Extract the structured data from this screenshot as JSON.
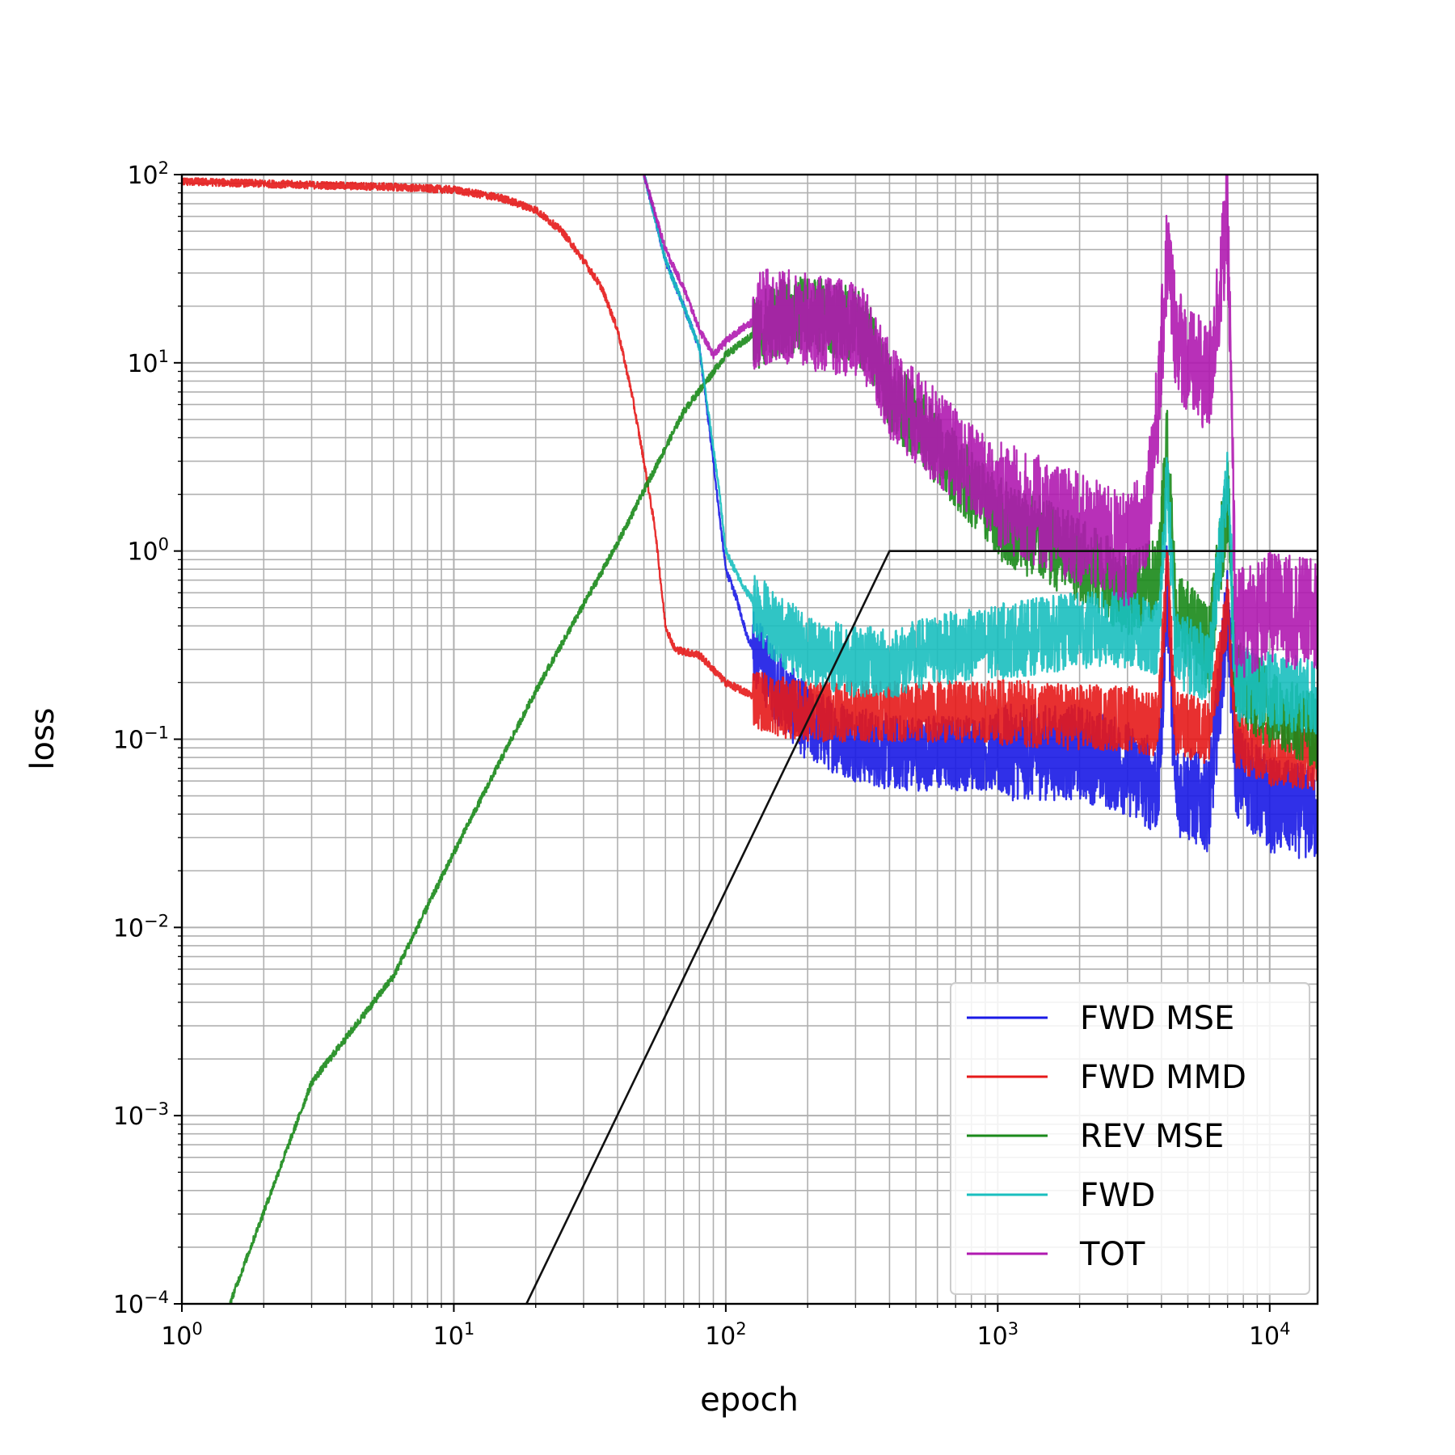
{
  "chart_data": {
    "type": "line",
    "xlabel": "epoch",
    "ylabel": "loss",
    "xscale": "log",
    "yscale": "log",
    "xlim": [
      1,
      15000
    ],
    "ylim": [
      0.0001,
      100
    ],
    "grid": true,
    "legend_position": "lower-right",
    "x_ticks": [
      {
        "base": "10",
        "exp": "0"
      },
      {
        "base": "10",
        "exp": "1"
      },
      {
        "base": "10",
        "exp": "2"
      },
      {
        "base": "10",
        "exp": "3"
      },
      {
        "base": "10",
        "exp": "4"
      }
    ],
    "y_ticks": [
      {
        "base": "10",
        "exp": "2"
      },
      {
        "base": "10",
        "exp": "1"
      },
      {
        "base": "10",
        "exp": "0"
      },
      {
        "base": "10",
        "exp": "−1"
      },
      {
        "base": "10",
        "exp": "−2"
      },
      {
        "base": "10",
        "exp": "−3"
      },
      {
        "base": "10",
        "exp": "−4"
      }
    ],
    "series": [
      {
        "name": "FWD MSE",
        "color": "#1a1ae6",
        "x": [
          50,
          60,
          70,
          80,
          90,
          95,
          100,
          110,
          120,
          150,
          200,
          300,
          400,
          600,
          1000,
          2000,
          3000,
          3900,
          4200,
          4500,
          6000,
          7000,
          7500,
          10000,
          15000
        ],
        "y": [
          100,
          35,
          20,
          12,
          3,
          1.5,
          0.8,
          0.55,
          0.35,
          0.2,
          0.12,
          0.095,
          0.085,
          0.085,
          0.085,
          0.085,
          0.07,
          0.055,
          0.7,
          0.055,
          0.045,
          0.5,
          0.07,
          0.045,
          0.04
        ],
        "band": [
          2.5,
          1.4,
          1.6,
          1.8,
          1.8
        ]
      },
      {
        "name": "FWD MMD",
        "color": "#e61a1a",
        "x": [
          1,
          3,
          6,
          10,
          15,
          20,
          25,
          30,
          35,
          40,
          45,
          50,
          55,
          60,
          65,
          80,
          100,
          150,
          200,
          300,
          500,
          1000,
          2000,
          3000,
          3900,
          4200,
          4500,
          6000,
          7000,
          7500,
          10000,
          15000
        ],
        "y": [
          92,
          88,
          86,
          83,
          75,
          65,
          50,
          35,
          25,
          15,
          7,
          3,
          1.3,
          0.4,
          0.3,
          0.28,
          0.2,
          0.15,
          0.14,
          0.14,
          0.14,
          0.14,
          0.13,
          0.13,
          0.12,
          0.8,
          0.12,
          0.11,
          0.5,
          0.1,
          0.085,
          0.08
        ],
        "band": [
          1.4,
          1.4,
          1.45,
          1.5,
          1.5
        ]
      },
      {
        "name": "REV MSE",
        "color": "#1a8a1a",
        "x": [
          1.5,
          3,
          6,
          10,
          20,
          40,
          70,
          100,
          150,
          200,
          300,
          350,
          400,
          600,
          1000,
          2000,
          3000,
          3900,
          4200,
          4500,
          6000,
          7000,
          7500,
          10000,
          15000
        ],
        "y": [
          0.0001,
          0.0015,
          0.0055,
          0.025,
          0.18,
          1.1,
          5.5,
          11,
          17,
          18,
          16,
          12,
          7,
          3.5,
          1.5,
          0.9,
          0.6,
          0.7,
          4,
          0.5,
          0.3,
          2,
          0.2,
          0.15,
          0.11
        ],
        "band": [
          1.4,
          1.5,
          1.6,
          1.7,
          1.6
        ]
      },
      {
        "name": "FWD",
        "color": "#1abfbf",
        "x": [
          50,
          60,
          70,
          80,
          90,
          95,
          100,
          110,
          120,
          150,
          200,
          300,
          400,
          600,
          1000,
          2000,
          3000,
          3900,
          4200,
          4500,
          6000,
          7000,
          7500,
          10000,
          15000
        ],
        "y": [
          100,
          35,
          20,
          12,
          3.5,
          2,
          1.0,
          0.75,
          0.6,
          0.4,
          0.3,
          0.26,
          0.25,
          0.3,
          0.33,
          0.38,
          0.38,
          0.35,
          2.5,
          0.3,
          0.25,
          2.5,
          0.2,
          0.18,
          0.17
        ],
        "band": [
          1.5,
          1.5,
          1.55,
          1.6,
          1.6
        ]
      },
      {
        "name": "TOT",
        "color": "#b01ab0",
        "x": [
          50,
          60,
          70,
          80,
          90,
          100,
          120,
          150,
          180,
          200,
          300,
          350,
          400,
          600,
          1000,
          2000,
          3000,
          3500,
          3900,
          4200,
          4500,
          5000,
          6000,
          7000,
          7500,
          10000,
          15000
        ],
        "y": [
          100,
          40,
          25,
          15,
          11,
          13,
          16,
          18,
          17,
          16.5,
          15,
          12,
          7,
          4,
          2,
          1.3,
          1.0,
          1.5,
          6,
          40,
          15,
          10,
          8,
          60,
          0.4,
          0.5,
          0.45
        ],
        "band": [
          1.8,
          1.7,
          1.8,
          2.0,
          2.0
        ]
      },
      {
        "name": "",
        "color": "#111111",
        "x": [
          18.5,
          400,
          15000
        ],
        "y": [
          0.0001,
          1,
          1
        ]
      }
    ],
    "legend": [
      "FWD MSE",
      "FWD MMD",
      "REV MSE",
      "FWD",
      "TOT"
    ]
  }
}
